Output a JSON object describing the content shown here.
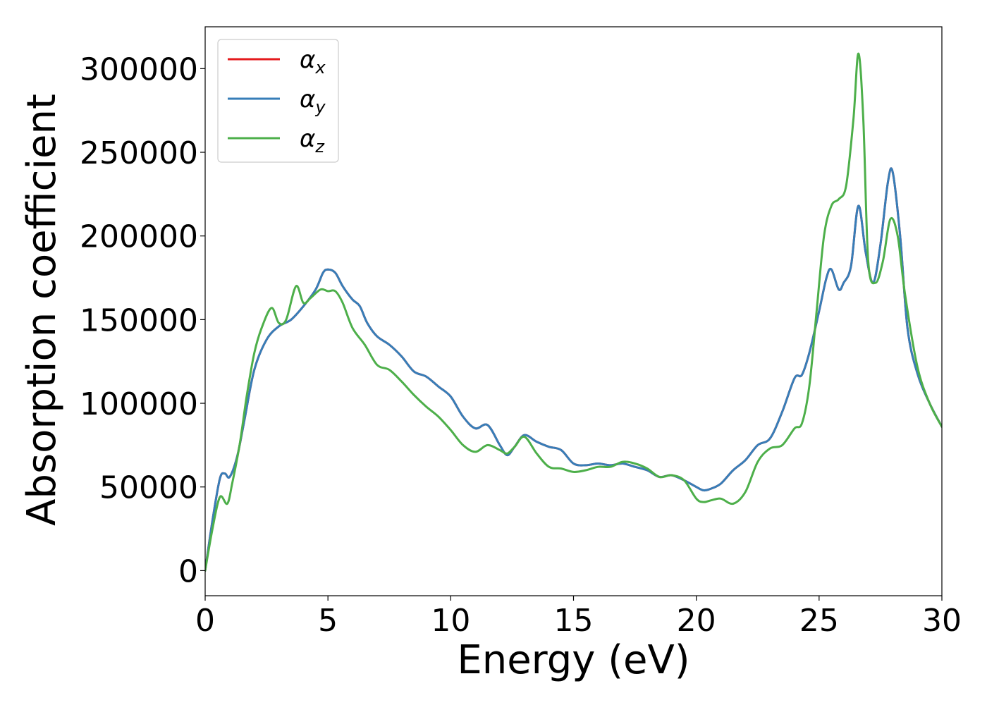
{
  "chart_data": {
    "type": "line",
    "title": "",
    "xlabel": "Energy (eV)",
    "ylabel": "Absorption coefficient",
    "xlim": [
      0,
      30
    ],
    "ylim": [
      -15000,
      325000
    ],
    "xticks": [
      0,
      5,
      10,
      15,
      20,
      25,
      30
    ],
    "yticks": [
      0,
      50000,
      100000,
      150000,
      200000,
      250000,
      300000
    ],
    "grid": false,
    "legend_position": "top-left",
    "series": [
      {
        "name": "α",
        "subscript": "x",
        "color": "#e41a1c",
        "x": [
          0,
          0.3,
          0.6,
          0.8,
          1.0,
          1.3,
          1.6,
          2.0,
          2.5,
          3.0,
          3.5,
          4.0,
          4.5,
          4.8,
          5.0,
          5.3,
          5.6,
          6.0,
          6.3,
          6.6,
          7.0,
          7.5,
          8.0,
          8.5,
          9.0,
          9.5,
          10.0,
          10.5,
          11.0,
          11.5,
          12.0,
          12.3,
          12.6,
          13.0,
          13.5,
          14.0,
          14.5,
          15.0,
          15.5,
          16.0,
          16.5,
          17.0,
          17.5,
          18.0,
          18.5,
          19.0,
          19.5,
          20.0,
          20.3,
          20.6,
          21.0,
          21.5,
          22.0,
          22.5,
          23.0,
          23.5,
          24.0,
          24.3,
          24.6,
          25.0,
          25.3,
          25.5,
          25.8,
          26.0,
          26.3,
          26.6,
          26.9,
          27.2,
          27.5,
          27.8,
          28.0,
          28.3,
          28.6,
          29.0,
          29.5,
          30.0
        ],
        "values": [
          0,
          30000,
          55000,
          58000,
          56000,
          68000,
          90000,
          120000,
          138000,
          146000,
          150000,
          158000,
          168000,
          178000,
          180000,
          178000,
          170000,
          162000,
          158000,
          148000,
          140000,
          135000,
          128000,
          119000,
          116000,
          110000,
          104000,
          92000,
          85000,
          87000,
          75000,
          69000,
          74000,
          81000,
          77000,
          74000,
          72000,
          64000,
          63000,
          64000,
          63000,
          64000,
          62000,
          60000,
          56000,
          57000,
          54000,
          50000,
          48000,
          49000,
          52000,
          60000,
          66000,
          75000,
          79000,
          95000,
          115000,
          117000,
          130000,
          155000,
          175000,
          180000,
          168000,
          172000,
          182000,
          218000,
          190000,
          172000,
          195000,
          232000,
          238000,
          200000,
          145000,
          118000,
          100000,
          86000
        ]
      },
      {
        "name": "α",
        "subscript": "y",
        "color": "#377eb8",
        "x": [
          0,
          0.3,
          0.6,
          0.8,
          1.0,
          1.3,
          1.6,
          2.0,
          2.5,
          3.0,
          3.5,
          4.0,
          4.5,
          4.8,
          5.0,
          5.3,
          5.6,
          6.0,
          6.3,
          6.6,
          7.0,
          7.5,
          8.0,
          8.5,
          9.0,
          9.5,
          10.0,
          10.5,
          11.0,
          11.5,
          12.0,
          12.3,
          12.6,
          13.0,
          13.5,
          14.0,
          14.5,
          15.0,
          15.5,
          16.0,
          16.5,
          17.0,
          17.5,
          18.0,
          18.5,
          19.0,
          19.5,
          20.0,
          20.3,
          20.6,
          21.0,
          21.5,
          22.0,
          22.5,
          23.0,
          23.5,
          24.0,
          24.3,
          24.6,
          25.0,
          25.3,
          25.5,
          25.8,
          26.0,
          26.3,
          26.6,
          26.9,
          27.2,
          27.5,
          27.8,
          28.0,
          28.3,
          28.6,
          29.0,
          29.5,
          30.0
        ],
        "values": [
          0,
          30000,
          55000,
          58000,
          56000,
          68000,
          90000,
          120000,
          138000,
          146000,
          150000,
          158000,
          168000,
          178000,
          180000,
          178000,
          170000,
          162000,
          158000,
          148000,
          140000,
          135000,
          128000,
          119000,
          116000,
          110000,
          104000,
          92000,
          85000,
          87000,
          75000,
          69000,
          74000,
          81000,
          77000,
          74000,
          72000,
          64000,
          63000,
          64000,
          63000,
          64000,
          62000,
          60000,
          56000,
          57000,
          54000,
          50000,
          48000,
          49000,
          52000,
          60000,
          66000,
          75000,
          79000,
          95000,
          115000,
          117000,
          130000,
          155000,
          175000,
          180000,
          168000,
          172000,
          182000,
          218000,
          190000,
          172000,
          195000,
          232000,
          238000,
          200000,
          145000,
          118000,
          100000,
          86000
        ]
      },
      {
        "name": "α",
        "subscript": "z",
        "color": "#4daf4a",
        "x": [
          0,
          0.3,
          0.6,
          0.9,
          1.1,
          1.4,
          1.7,
          2.0,
          2.3,
          2.7,
          3.0,
          3.3,
          3.7,
          4.0,
          4.3,
          4.7,
          5.0,
          5.3,
          5.6,
          6.0,
          6.5,
          7.0,
          7.5,
          8.0,
          8.5,
          9.0,
          9.5,
          10.0,
          10.5,
          11.0,
          11.5,
          12.0,
          12.3,
          12.6,
          13.0,
          13.5,
          14.0,
          14.5,
          15.0,
          15.5,
          16.0,
          16.5,
          17.0,
          17.5,
          18.0,
          18.5,
          19.0,
          19.5,
          20.0,
          20.3,
          20.6,
          21.0,
          21.5,
          22.0,
          22.5,
          23.0,
          23.5,
          24.0,
          24.3,
          24.6,
          24.9,
          25.2,
          25.5,
          25.8,
          26.1,
          26.4,
          26.6,
          26.8,
          27.0,
          27.3,
          27.6,
          27.9,
          28.2,
          28.5,
          29.0,
          29.5,
          30.0
        ],
        "values": [
          0,
          25000,
          44000,
          40000,
          52000,
          75000,
          105000,
          130000,
          145000,
          157000,
          148000,
          150000,
          170000,
          160000,
          163000,
          168000,
          167000,
          167000,
          160000,
          145000,
          135000,
          123000,
          120000,
          113000,
          105000,
          98000,
          92000,
          84000,
          75000,
          71000,
          75000,
          72000,
          70000,
          74000,
          80000,
          70000,
          62000,
          61000,
          59000,
          60000,
          62000,
          62000,
          65000,
          64000,
          61000,
          56000,
          57000,
          54000,
          43000,
          41000,
          42000,
          43000,
          40000,
          47000,
          65000,
          73000,
          75000,
          85000,
          88000,
          110000,
          155000,
          200000,
          218000,
          222000,
          230000,
          270000,
          309000,
          270000,
          185000,
          172000,
          185000,
          210000,
          200000,
          165000,
          122000,
          100000,
          86000
        ]
      }
    ]
  }
}
